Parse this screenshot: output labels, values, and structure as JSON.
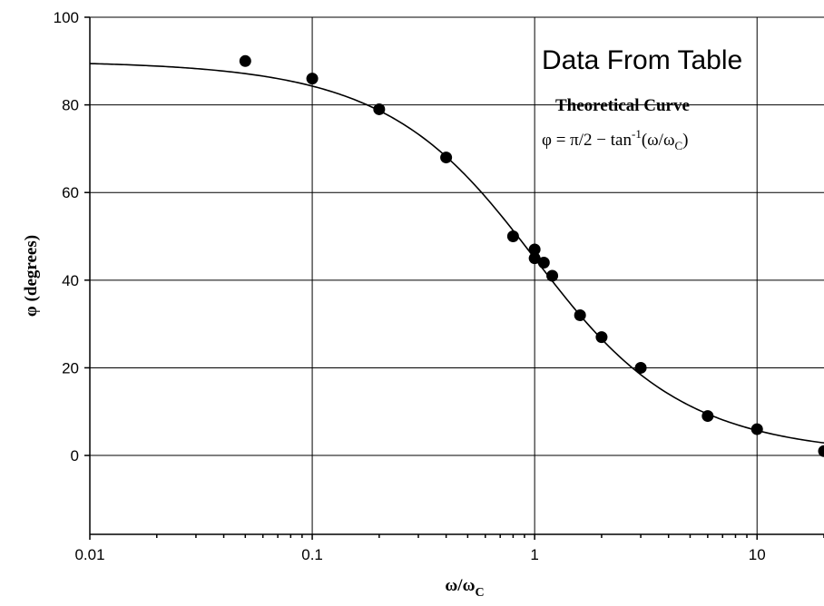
{
  "chart_data": {
    "type": "scatter",
    "title": "Data From Table",
    "annotation_title": "Theoretical Curve",
    "annotation_equation": {
      "lhs": "φ = π/2 − tan",
      "sup": "-1",
      "arg_open": "(ω/ω",
      "arg_sub": "C",
      "arg_close": ")"
    },
    "ylabel": "φ (degrees)",
    "xlabel": {
      "main": "ω/ω",
      "sub": "C"
    },
    "xscale": "log",
    "xlim": [
      0.01,
      20
    ],
    "ylim": [
      -18,
      100
    ],
    "x_ticks": [
      {
        "value": 0.01,
        "label": "0.01"
      },
      {
        "value": 0.1,
        "label": "0.1"
      },
      {
        "value": 1,
        "label": "1"
      },
      {
        "value": 10,
        "label": "10"
      }
    ],
    "y_ticks": [
      {
        "value": 0,
        "label": "0"
      },
      {
        "value": 20,
        "label": "20"
      },
      {
        "value": 40,
        "label": "40"
      },
      {
        "value": 60,
        "label": "60"
      },
      {
        "value": 80,
        "label": "80"
      },
      {
        "value": 100,
        "label": "100"
      }
    ],
    "grid": true,
    "series": [
      {
        "name": "Data From Table",
        "kind": "points",
        "color": "#000000",
        "x": [
          0.05,
          0.1,
          0.2,
          0.4,
          0.8,
          1.0,
          1.0,
          1.1,
          1.2,
          1.6,
          2.0,
          3.0,
          6.0,
          10.0,
          20.0
        ],
        "y": [
          90,
          86,
          79,
          68,
          50,
          47,
          45,
          44,
          41,
          32,
          27,
          20,
          9,
          6,
          1
        ]
      },
      {
        "name": "Theoretical Curve",
        "kind": "line",
        "color": "#000000",
        "function": "90 - atan(x) in degrees",
        "x_range": [
          0.01,
          20
        ]
      }
    ]
  }
}
